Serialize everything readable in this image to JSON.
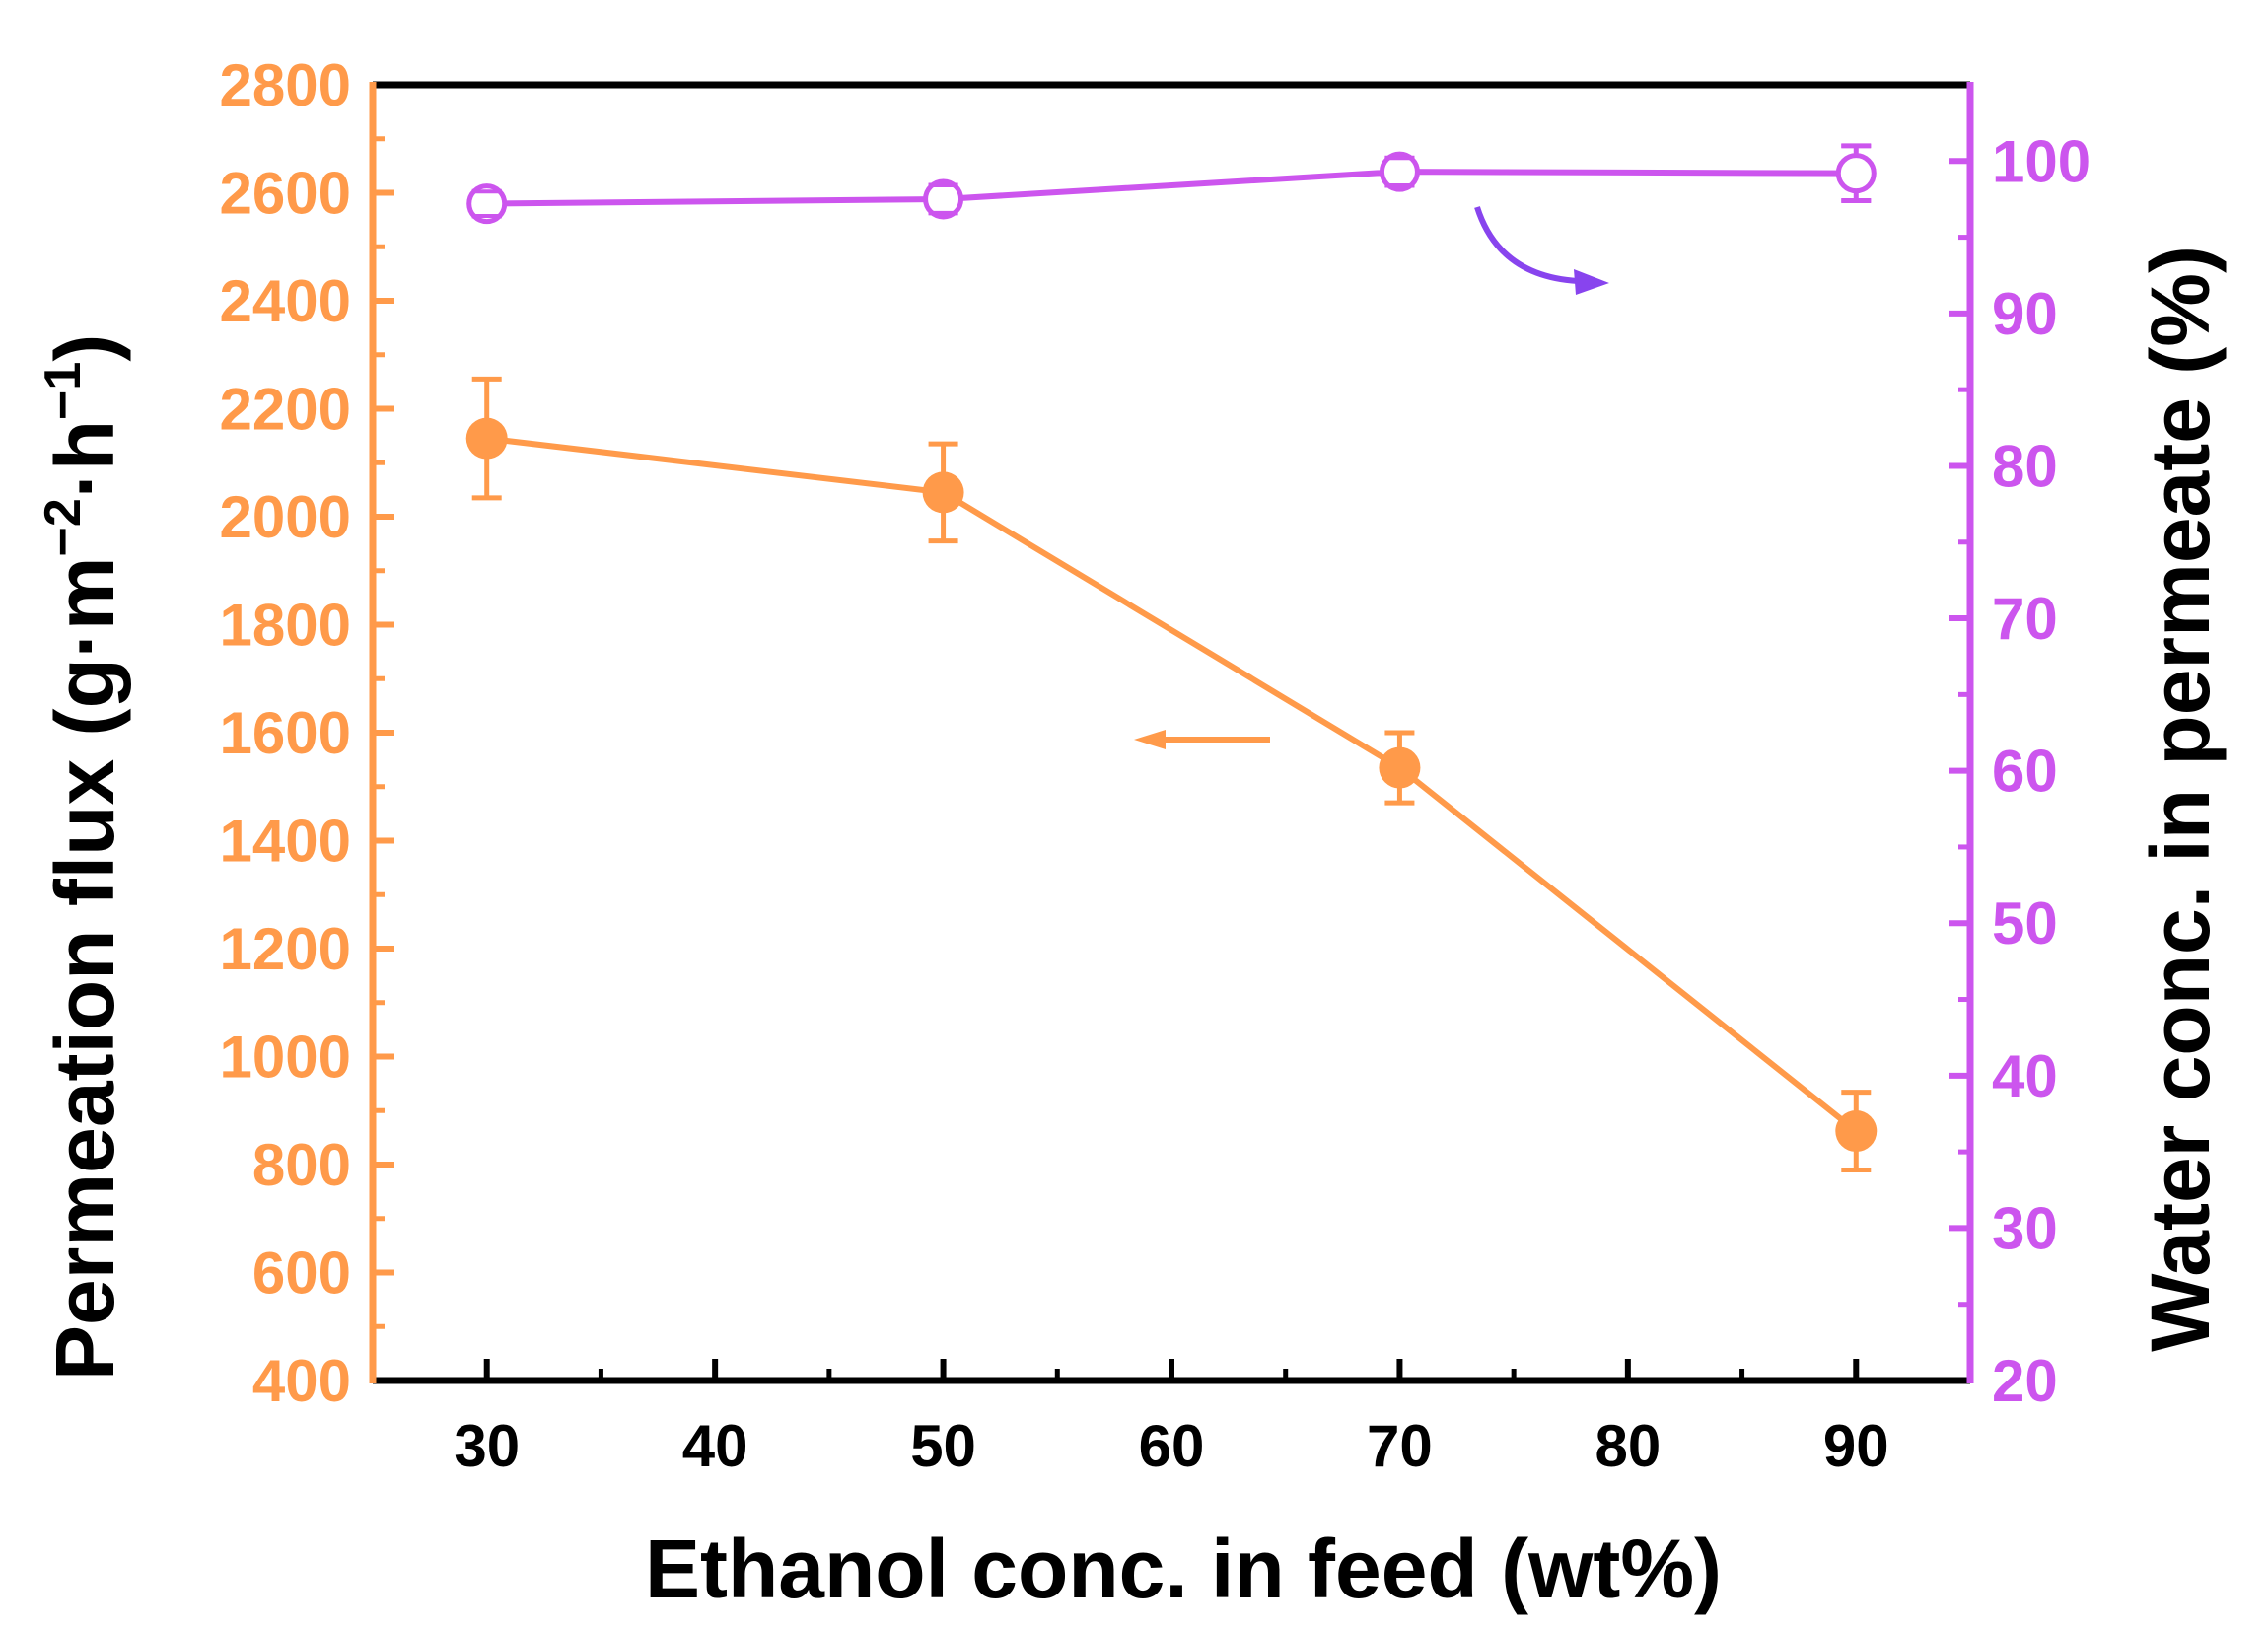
{
  "chart_data": {
    "type": "line",
    "xlabel": "Ethanol conc. in feed (wt%)",
    "x_ticks": [
      30,
      40,
      50,
      60,
      70,
      80,
      90
    ],
    "xlim": [
      25,
      95
    ],
    "y_left": {
      "label_main": "Permeation flux (g·m",
      "label_sup1": "−2",
      "label_mid": "·h",
      "label_sup2": "−1",
      "label_end": ")",
      "ticks": [
        400,
        600,
        800,
        1000,
        1200,
        1400,
        1600,
        1800,
        2000,
        2200,
        2400,
        2600,
        2800
      ],
      "ylim": [
        400,
        2800
      ],
      "color": "#FF9A4A"
    },
    "y_right": {
      "label": "Water conc. in permeate (%)",
      "ticks": [
        20,
        30,
        40,
        50,
        60,
        70,
        80,
        90,
        100
      ],
      "ylim": [
        20,
        105
      ],
      "color": "#CC55EE"
    },
    "series": [
      {
        "axis": "left",
        "marker": "filled-circle",
        "color": "#FF9A4A",
        "x": [
          30,
          50,
          70,
          90
        ],
        "y": [
          2145,
          2045,
          1535,
          862
        ],
        "err": [
          110,
          90,
          65,
          72
        ]
      },
      {
        "axis": "right",
        "marker": "open-circle",
        "color": "#CC55EE",
        "x": [
          30,
          50,
          70,
          90
        ],
        "y": [
          97.2,
          97.5,
          99.3,
          99.2
        ],
        "err": [
          0.8,
          0.9,
          0.9,
          1.8
        ]
      }
    ],
    "annotations": [
      {
        "kind": "arrow-left",
        "points_to": "left axis",
        "color": "#FF9A4A"
      },
      {
        "kind": "curved-arrow-right",
        "points_to": "right axis",
        "color": "#8844EE"
      }
    ],
    "grid": false
  }
}
